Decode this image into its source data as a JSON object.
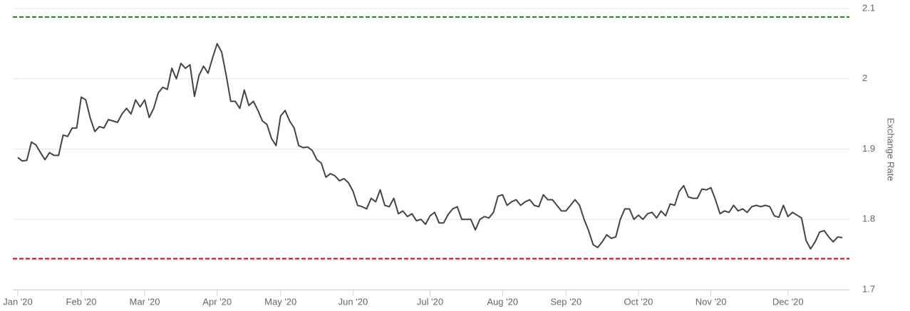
{
  "chart_data": {
    "type": "line",
    "y_axis_label": "Exchange Rate",
    "categories": [
      "Jan '20",
      null,
      null,
      null,
      null,
      null,
      null,
      null,
      null,
      null,
      null,
      null,
      null,
      null,
      "Feb '20",
      null,
      null,
      null,
      null,
      null,
      null,
      null,
      null,
      null,
      null,
      null,
      null,
      null,
      "Mar '20",
      null,
      null,
      null,
      null,
      null,
      null,
      null,
      null,
      null,
      null,
      null,
      null,
      null,
      null,
      null,
      "Apr '20",
      null,
      null,
      null,
      null,
      null,
      null,
      null,
      null,
      null,
      null,
      null,
      null,
      null,
      "May '20",
      null,
      null,
      null,
      null,
      null,
      null,
      null,
      null,
      null,
      null,
      null,
      null,
      null,
      null,
      null,
      "Jun '20",
      null,
      null,
      null,
      null,
      null,
      null,
      null,
      null,
      null,
      null,
      null,
      null,
      null,
      null,
      null,
      null,
      "Jul '20",
      null,
      null,
      null,
      null,
      null,
      null,
      null,
      null,
      null,
      null,
      null,
      null,
      null,
      null,
      null,
      "Aug '20",
      null,
      null,
      null,
      null,
      null,
      null,
      null,
      null,
      null,
      null,
      null,
      null,
      null,
      "Sep '20",
      null,
      null,
      null,
      null,
      null,
      null,
      null,
      null,
      null,
      null,
      null,
      null,
      null,
      null,
      null,
      "Oct '20",
      null,
      null,
      null,
      null,
      null,
      null,
      null,
      null,
      null,
      null,
      null,
      null,
      null,
      null,
      null,
      "Nov '20",
      null,
      null,
      null,
      null,
      null,
      null,
      null,
      null,
      null,
      null,
      null,
      null,
      null,
      null,
      null,
      null,
      "Dec '20",
      null,
      null,
      null,
      null,
      null,
      null,
      null,
      null,
      null,
      null,
      null,
      null
    ],
    "values": [
      1.888,
      1.883,
      1.884,
      1.91,
      1.906,
      1.895,
      1.885,
      1.895,
      1.891,
      1.891,
      1.92,
      1.918,
      1.93,
      1.93,
      1.974,
      1.97,
      1.944,
      1.925,
      1.932,
      1.93,
      1.942,
      1.94,
      1.938,
      1.95,
      1.958,
      1.95,
      1.97,
      1.96,
      1.97,
      1.945,
      1.958,
      1.98,
      1.988,
      1.985,
      2.015,
      2.0,
      2.022,
      2.015,
      2.02,
      1.975,
      2.005,
      2.018,
      2.008,
      2.03,
      2.05,
      2.038,
      2.005,
      1.968,
      1.968,
      1.958,
      1.984,
      1.962,
      1.968,
      1.955,
      1.94,
      1.935,
      1.915,
      1.905,
      1.947,
      1.955,
      1.94,
      1.93,
      1.905,
      1.902,
      1.903,
      1.898,
      1.885,
      1.88,
      1.86,
      1.865,
      1.862,
      1.855,
      1.858,
      1.852,
      1.84,
      1.82,
      1.818,
      1.815,
      1.83,
      1.825,
      1.842,
      1.82,
      1.818,
      1.83,
      1.808,
      1.812,
      1.804,
      1.808,
      1.798,
      1.8,
      1.793,
      1.805,
      1.81,
      1.795,
      1.795,
      1.807,
      1.815,
      1.818,
      1.8,
      1.8,
      1.8,
      1.785,
      1.8,
      1.804,
      1.802,
      1.81,
      1.833,
      1.835,
      1.82,
      1.825,
      1.828,
      1.82,
      1.825,
      1.828,
      1.82,
      1.818,
      1.835,
      1.828,
      1.828,
      1.82,
      1.812,
      1.812,
      1.82,
      1.828,
      1.82,
      1.8,
      1.784,
      1.764,
      1.76,
      1.768,
      1.778,
      1.773,
      1.775,
      1.8,
      1.815,
      1.815,
      1.8,
      1.806,
      1.8,
      1.808,
      1.81,
      1.802,
      1.812,
      1.805,
      1.822,
      1.82,
      1.84,
      1.848,
      1.832,
      1.83,
      1.83,
      1.843,
      1.842,
      1.845,
      1.828,
      1.808,
      1.812,
      1.81,
      1.82,
      1.812,
      1.815,
      1.81,
      1.818,
      1.82,
      1.818,
      1.82,
      1.818,
      1.805,
      1.803,
      1.82,
      1.804,
      1.81,
      1.806,
      1.802,
      1.77,
      1.758,
      1.768,
      1.782,
      1.784,
      1.775,
      1.768,
      1.775,
      1.774
    ],
    "color": "#434348",
    "reference_lines": [
      {
        "value": 2.088,
        "color": "#1a7f1a"
      },
      {
        "value": 1.744,
        "color": "#e00000"
      }
    ],
    "ylim": [
      1.7,
      2.1
    ],
    "yticks": [
      1.7,
      1.8,
      1.9,
      2,
      2.1
    ],
    "grid": true
  }
}
